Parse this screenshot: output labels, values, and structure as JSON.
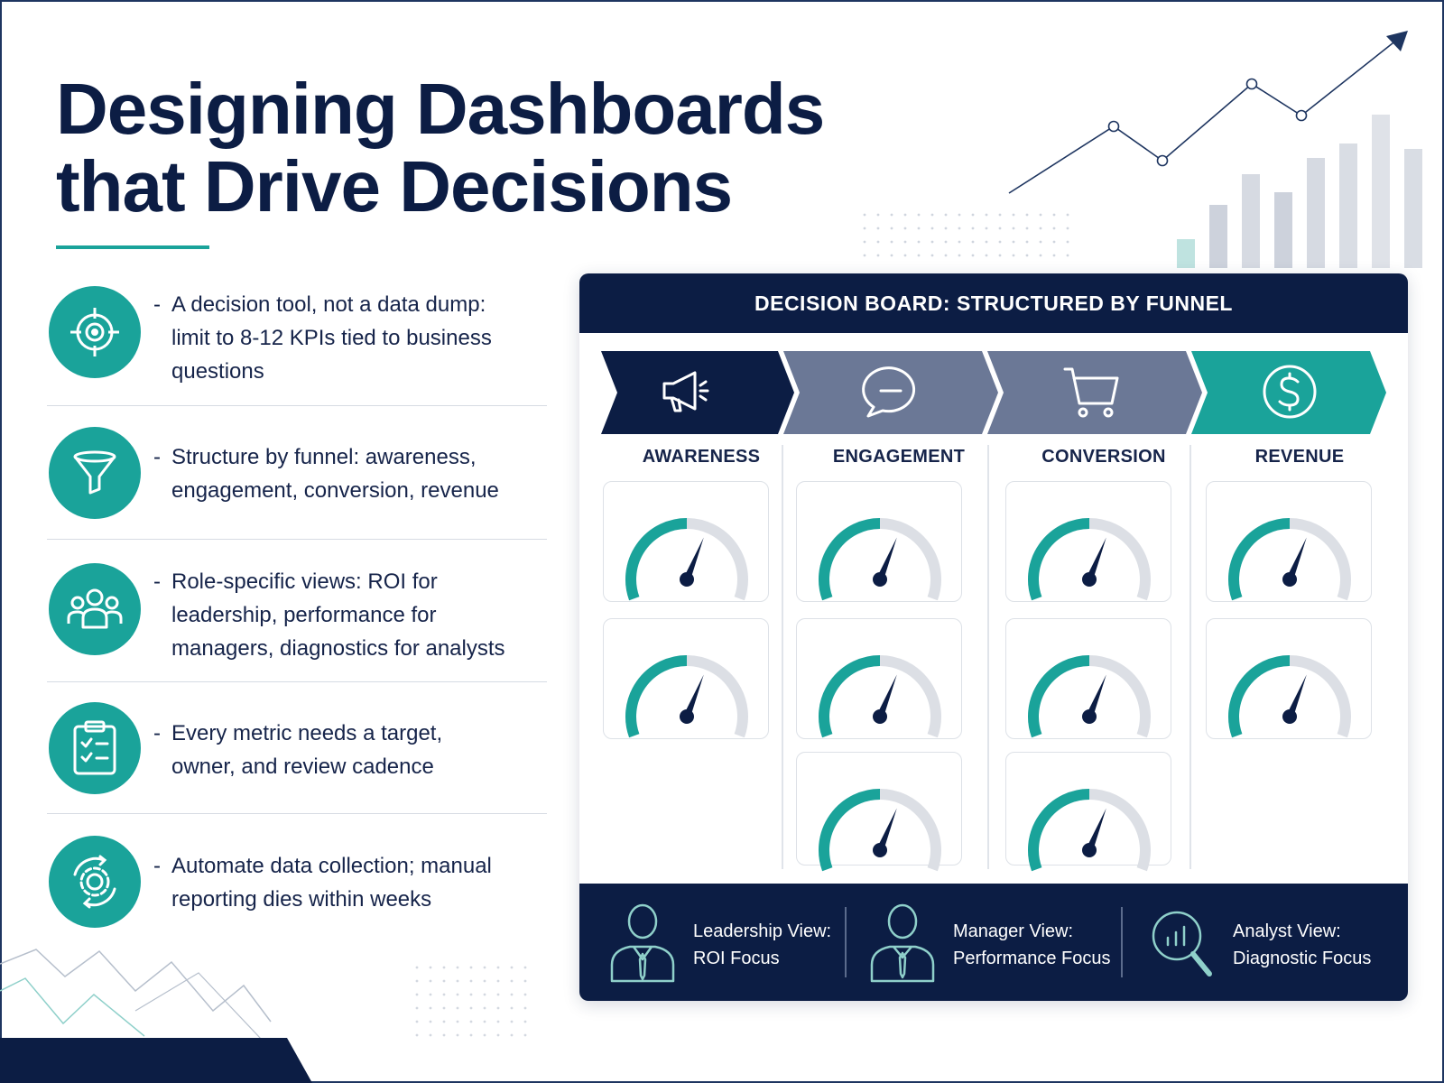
{
  "title": {
    "line1": "Designing Dashboards",
    "line2": "that Drive Decisions"
  },
  "colors": {
    "navy": "#0c1d44",
    "teal": "#1aa39a",
    "slate": "#6b7896",
    "light_gray": "#d9dde4"
  },
  "bullets": [
    {
      "icon": "target-icon",
      "lines": [
        "A decision tool, not a data dump:",
        "limit to 8-12 KPIs tied to business",
        "questions"
      ]
    },
    {
      "icon": "funnel-icon",
      "lines": [
        "Structure by funnel: awareness,",
        "engagement, conversion, revenue"
      ]
    },
    {
      "icon": "users-icon",
      "lines": [
        "Role-specific views: ROI for",
        "leadership, performance for",
        "managers, diagnostics for analysts"
      ]
    },
    {
      "icon": "clipboard-checklist-icon",
      "lines": [
        "Every metric needs a target,",
        "owner, and review cadence"
      ]
    },
    {
      "icon": "gear-cycle-icon",
      "lines": [
        "Automate data collection; manual",
        "reporting dies within weeks"
      ]
    }
  ],
  "board": {
    "header": "DECISION BOARD: STRUCTURED BY FUNNEL",
    "stages": [
      {
        "label": "AWARENESS",
        "icon": "megaphone-icon",
        "gauges": [
          0.6,
          0.6
        ]
      },
      {
        "label": "ENGAGEMENT",
        "icon": "chat-bubble-icon",
        "gauges": [
          0.6,
          0.6,
          0.6
        ]
      },
      {
        "label": "CONVERSION",
        "icon": "shopping-cart-icon",
        "gauges": [
          0.6,
          0.6,
          0.6
        ]
      },
      {
        "label": "REVENUE",
        "icon": "dollar-icon",
        "gauges": [
          0.6,
          0.6
        ]
      }
    ],
    "views": [
      {
        "icon": "leader-person-icon",
        "line1": "Leadership View:",
        "line2": "ROI Focus"
      },
      {
        "icon": "manager-person-icon",
        "line1": "Manager View:",
        "line2": "Performance Focus"
      },
      {
        "icon": "analytics-magnifier-icon",
        "line1": "Analyst View:",
        "line2": "Diagnostic Focus"
      }
    ]
  }
}
